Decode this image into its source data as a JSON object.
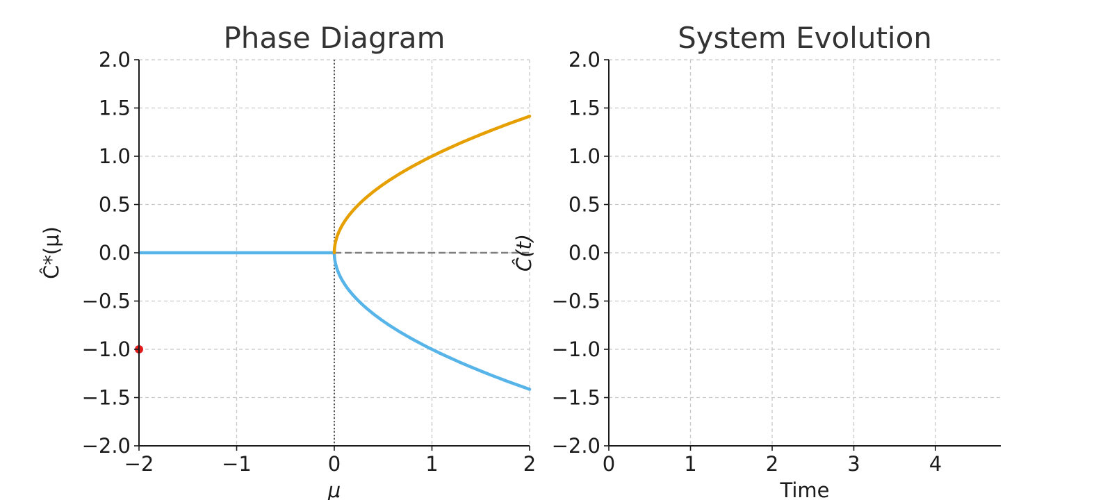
{
  "chart_data": [
    {
      "type": "line",
      "title": "Phase Diagram",
      "xlabel": "μ",
      "ylabel": "Ĉ*(μ)",
      "xlim": [
        -2,
        2
      ],
      "ylim": [
        -2,
        2
      ],
      "xticks": [
        "−2",
        "−1",
        "0",
        "1",
        "2"
      ],
      "yticks": [
        "2.0",
        "1.5",
        "1.0",
        "0.5",
        "0.0",
        "−0.5",
        "−1.0",
        "−1.5",
        "−2.0"
      ],
      "grid": true,
      "colors": {
        "upper": "#E69F00",
        "lower": "#56B4E9",
        "unstable": "#7f7f7f",
        "marker": "#e31a1c",
        "vline": "#555555"
      },
      "series": [
        {
          "x": [
            -2,
            -1,
            0
          ],
          "y": [
            0,
            0,
            0
          ],
          "style": "solid",
          "color": "#56B4E9"
        },
        {
          "x": [
            0,
            0.25,
            0.5,
            1.0,
            1.5,
            2.0
          ],
          "y": [
            0,
            0.5,
            0.707,
            1.0,
            1.225,
            1.414
          ],
          "style": "solid",
          "color": "#E69F00"
        },
        {
          "x": [
            0,
            0.25,
            0.5,
            1.0,
            1.5,
            2.0
          ],
          "y": [
            0,
            -0.5,
            -0.707,
            -1.0,
            -1.225,
            -1.414
          ],
          "style": "solid",
          "color": "#56B4E9"
        },
        {
          "x": [
            0,
            2
          ],
          "y": [
            0,
            0
          ],
          "style": "dashed",
          "color": "#7f7f7f"
        }
      ],
      "vline": {
        "x": 0,
        "style": "dotted"
      },
      "marker": {
        "x": -2,
        "y": -1
      }
    },
    {
      "type": "line",
      "title": "System Evolution",
      "xlabel": "Time",
      "ylabel": "Ĉ(t)",
      "xlim": [
        0,
        4.8
      ],
      "ylim": [
        -2,
        2
      ],
      "xticks": [
        "0",
        "1",
        "2",
        "3",
        "4"
      ],
      "yticks": [
        "2.0",
        "1.5",
        "1.0",
        "0.5",
        "0.0",
        "−0.5",
        "−1.0",
        "−1.5",
        "−2.0"
      ],
      "grid": true,
      "series": []
    }
  ]
}
